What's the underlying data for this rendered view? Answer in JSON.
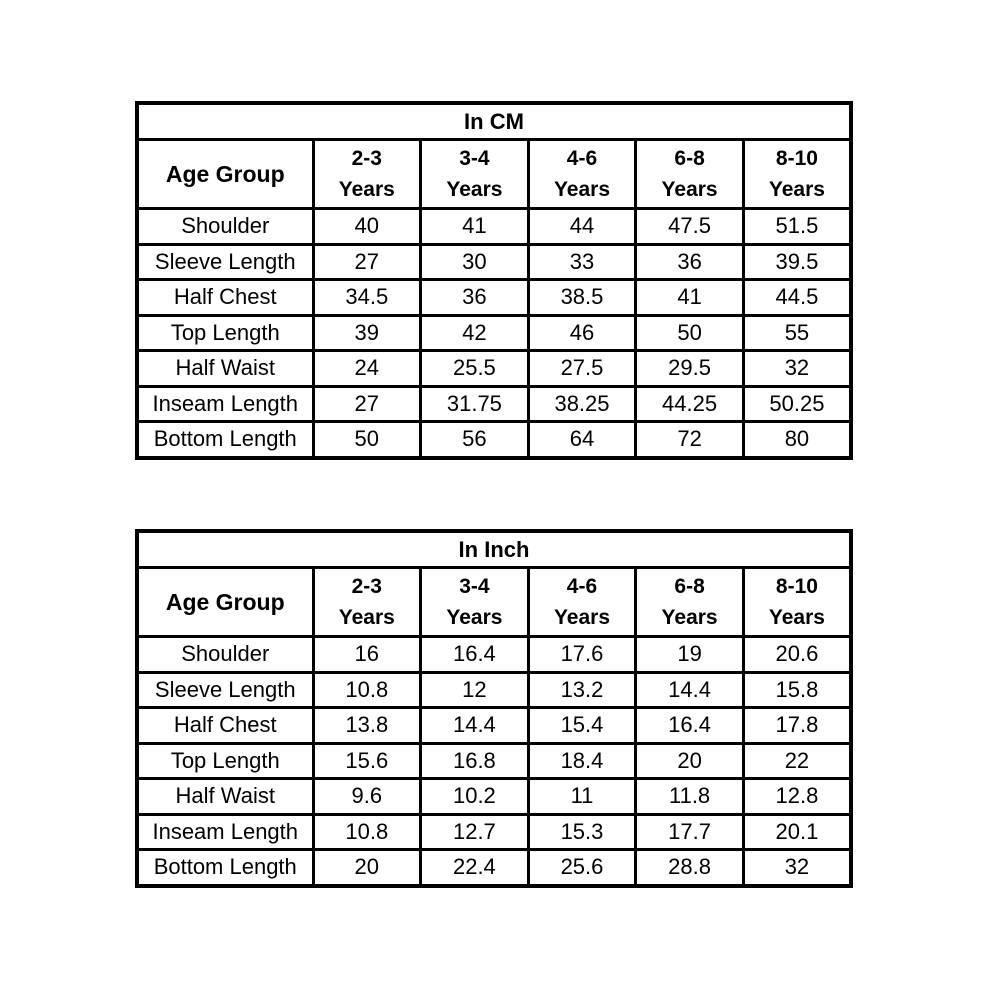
{
  "colors": {
    "background": "#ffffff",
    "border": "#000000",
    "text": "#000000"
  },
  "tables": [
    {
      "title": "In CM",
      "corner_header": "Age Group",
      "column_headers": [
        {
          "top": "2-3",
          "bottom": "Years"
        },
        {
          "top": "3-4",
          "bottom": "Years"
        },
        {
          "top": "4-6",
          "bottom": "Years"
        },
        {
          "top": "6-8",
          "bottom": "Years"
        },
        {
          "top": "8-10",
          "bottom": "Years"
        }
      ],
      "rows": [
        {
          "label": "Shoulder",
          "values": [
            "40",
            "41",
            "44",
            "47.5",
            "51.5"
          ]
        },
        {
          "label": "Sleeve Length",
          "values": [
            "27",
            "30",
            "33",
            "36",
            "39.5"
          ]
        },
        {
          "label": "Half Chest",
          "values": [
            "34.5",
            "36",
            "38.5",
            "41",
            "44.5"
          ]
        },
        {
          "label": "Top Length",
          "values": [
            "39",
            "42",
            "46",
            "50",
            "55"
          ]
        },
        {
          "label": "Half Waist",
          "values": [
            "24",
            "25.5",
            "27.5",
            "29.5",
            "32"
          ]
        },
        {
          "label": "Inseam Length",
          "values": [
            "27",
            "31.75",
            "38.25",
            "44.25",
            "50.25"
          ]
        },
        {
          "label": "Bottom Length",
          "values": [
            "50",
            "56",
            "64",
            "72",
            "80"
          ]
        }
      ]
    },
    {
      "title": "In Inch",
      "corner_header": "Age Group",
      "column_headers": [
        {
          "top": "2-3",
          "bottom": "Years"
        },
        {
          "top": "3-4",
          "bottom": "Years"
        },
        {
          "top": "4-6",
          "bottom": "Years"
        },
        {
          "top": "6-8",
          "bottom": "Years"
        },
        {
          "top": "8-10",
          "bottom": "Years"
        }
      ],
      "rows": [
        {
          "label": "Shoulder",
          "values": [
            "16",
            "16.4",
            "17.6",
            "19",
            "20.6"
          ]
        },
        {
          "label": "Sleeve Length",
          "values": [
            "10.8",
            "12",
            "13.2",
            "14.4",
            "15.8"
          ]
        },
        {
          "label": "Half Chest",
          "values": [
            "13.8",
            "14.4",
            "15.4",
            "16.4",
            "17.8"
          ]
        },
        {
          "label": "Top Length",
          "values": [
            "15.6",
            "16.8",
            "18.4",
            "20",
            "22"
          ]
        },
        {
          "label": "Half Waist",
          "values": [
            "9.6",
            "10.2",
            "11",
            "11.8",
            "12.8"
          ]
        },
        {
          "label": "Inseam Length",
          "values": [
            "10.8",
            "12.7",
            "15.3",
            "17.7",
            "20.1"
          ]
        },
        {
          "label": "Bottom Length",
          "values": [
            "20",
            "22.4",
            "25.6",
            "28.8",
            "32"
          ]
        }
      ]
    }
  ]
}
